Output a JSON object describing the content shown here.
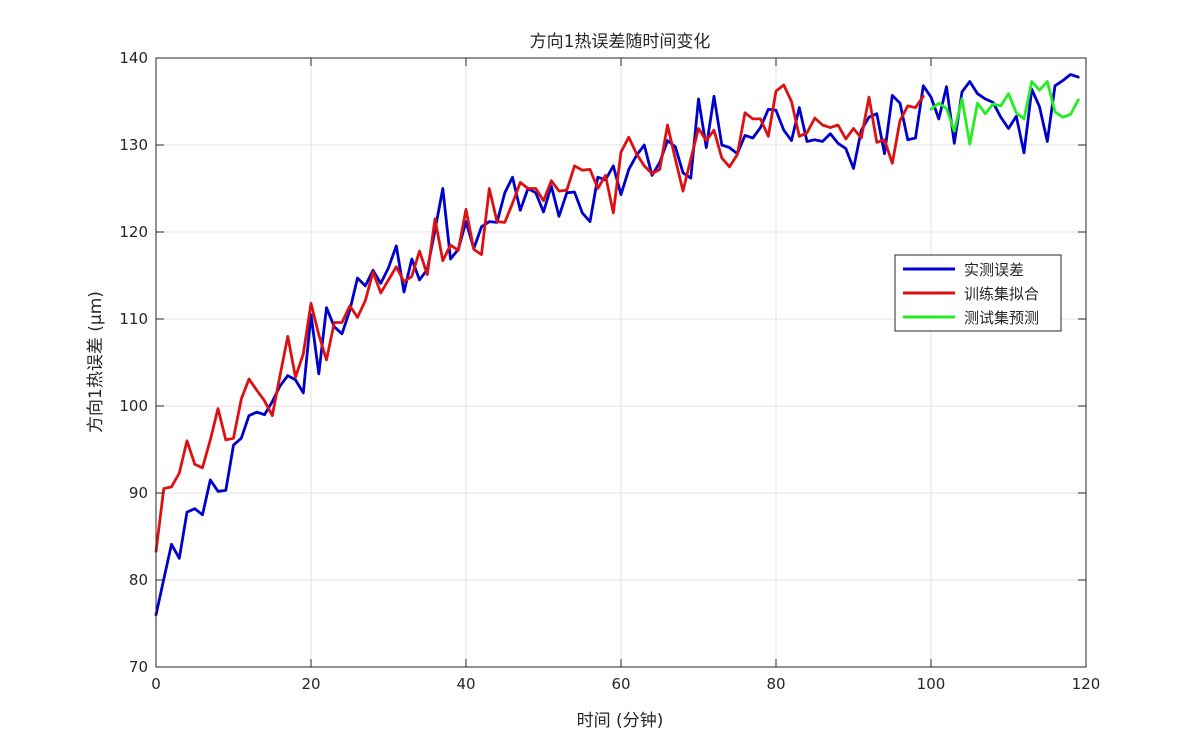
{
  "chart_data": {
    "type": "line",
    "title": "方向1热误差随时间变化",
    "xlabel": "时间 (分钟)",
    "ylabel": "方向1热误差 (μm)",
    "xlim": [
      0,
      120
    ],
    "ylim": [
      70,
      140
    ],
    "xticks": [
      0,
      20,
      40,
      60,
      80,
      100,
      120
    ],
    "yticks": [
      70,
      80,
      90,
      100,
      110,
      120,
      130,
      140
    ],
    "grid": true,
    "legend_position": "right",
    "series": [
      {
        "name": "实测误差",
        "color": "#0000cc",
        "x": [
          0,
          1,
          2,
          3,
          4,
          5,
          6,
          7,
          8,
          9,
          10,
          11,
          12,
          13,
          14,
          15,
          16,
          17,
          18,
          19,
          20,
          21,
          22,
          23,
          24,
          25,
          26,
          27,
          28,
          29,
          30,
          31,
          32,
          33,
          34,
          35,
          36,
          37,
          38,
          39,
          40,
          41,
          42,
          43,
          44,
          45,
          46,
          47,
          48,
          49,
          50,
          51,
          52,
          53,
          54,
          55,
          56,
          57,
          58,
          59,
          60,
          61,
          62,
          63,
          64,
          65,
          66,
          67,
          68,
          69,
          70,
          71,
          72,
          73,
          74,
          75,
          76,
          77,
          78,
          79,
          80,
          81,
          82,
          83,
          84,
          85,
          86,
          87,
          88,
          89,
          90,
          91,
          92,
          93,
          94,
          95,
          96,
          97,
          98,
          99,
          100,
          101,
          102,
          103,
          104,
          105,
          106,
          107,
          108,
          109,
          110,
          111,
          112,
          113,
          114,
          115,
          116,
          117,
          118,
          119
        ],
        "values": [
          76,
          80.1,
          84.1,
          82.5,
          87.8,
          88.2,
          87.5,
          91.5,
          90.2,
          90.3,
          95.5,
          96.3,
          98.9,
          99.3,
          99,
          100.5,
          102.3,
          103.5,
          103,
          101.5,
          110.5,
          103.7,
          111.3,
          109.1,
          108.3,
          111,
          114.7,
          113.8,
          115.6,
          114.1,
          115.9,
          118.4,
          113.1,
          116.9,
          114.5,
          115.7,
          120.2,
          125,
          116.9,
          118,
          121.2,
          118.1,
          120.6,
          121.2,
          121.1,
          124.5,
          126.3,
          122.5,
          125,
          124.5,
          122.3,
          125.3,
          121.8,
          124.5,
          124.6,
          122.2,
          121.2,
          126.3,
          126,
          127.6,
          124.3,
          127.2,
          128.8,
          130,
          126.5,
          128,
          130.5,
          129.8,
          126.8,
          126.2,
          135.3,
          129.7,
          135.6,
          130,
          129.7,
          129,
          131.1,
          130.8,
          132,
          134.1,
          134,
          131.7,
          130.5,
          134.3,
          130.4,
          130.6,
          130.4,
          131.3,
          130.2,
          129.6,
          127.3,
          131.7,
          133.2,
          133.6,
          129,
          135.7,
          134.8,
          130.6,
          130.8,
          136.8,
          135.5,
          133,
          136.7,
          130.2,
          136.1,
          137.3,
          135.9,
          135.3,
          134.9,
          133.2,
          131.9,
          133.3,
          129.1,
          136.4,
          134.4,
          130.4,
          136.8,
          137.4,
          138.1,
          137.8
        ]
      },
      {
        "name": "训练集拟合",
        "color": "#dd1111",
        "x": [
          0,
          1,
          2,
          3,
          4,
          5,
          6,
          7,
          8,
          9,
          10,
          11,
          12,
          13,
          14,
          15,
          16,
          17,
          18,
          19,
          20,
          21,
          22,
          23,
          24,
          25,
          26,
          27,
          28,
          29,
          30,
          31,
          32,
          33,
          34,
          35,
          36,
          37,
          38,
          39,
          40,
          41,
          42,
          43,
          44,
          45,
          46,
          47,
          48,
          49,
          50,
          51,
          52,
          53,
          54,
          55,
          56,
          57,
          58,
          59,
          60,
          61,
          62,
          63,
          64,
          65,
          66,
          67,
          68,
          69,
          70,
          71,
          72,
          73,
          74,
          75,
          76,
          77,
          78,
          79,
          80,
          81,
          82,
          83,
          84,
          85,
          86,
          87,
          88,
          89,
          90,
          91,
          92,
          93,
          94,
          95,
          96,
          97,
          98,
          99
        ],
        "values": [
          83.3,
          90.5,
          90.7,
          92.3,
          96,
          93.3,
          92.9,
          96.1,
          99.7,
          96.1,
          96.3,
          100.8,
          103.1,
          101.8,
          100.6,
          98.9,
          103.5,
          108,
          103.3,
          106,
          111.8,
          108.2,
          105.3,
          109.6,
          109.6,
          111.5,
          110.2,
          112.1,
          115.4,
          113,
          114.5,
          116,
          114.3,
          114.9,
          117.8,
          115.1,
          121.5,
          116.7,
          118.5,
          117.9,
          122.6,
          118,
          117.4,
          125,
          121.2,
          121.1,
          123.3,
          125.7,
          125,
          125,
          123.6,
          125.9,
          124.7,
          124.8,
          127.6,
          127.1,
          127.2,
          125,
          126.5,
          122.2,
          129.2,
          130.9,
          129,
          127.6,
          126.7,
          127.2,
          132.3,
          128.4,
          124.7,
          128.4,
          131.9,
          130.5,
          131.7,
          128.5,
          127.5,
          128.9,
          133.7,
          133,
          133,
          131,
          136.2,
          136.9,
          135,
          131,
          131.4,
          133.1,
          132.3,
          132,
          132.3,
          130.7,
          131.9,
          130.8,
          135.5,
          130.3,
          130.6,
          127.9,
          132.8,
          134.5,
          134.3,
          135.6
        ]
      },
      {
        "name": "测试集预测",
        "color": "#22ee22",
        "x": [
          100,
          101,
          102,
          103,
          104,
          105,
          106,
          107,
          108,
          109,
          110,
          111,
          112,
          113,
          114,
          115,
          116,
          117,
          118,
          119
        ],
        "values": [
          134.1,
          134.8,
          134.2,
          131.6,
          135.3,
          130.1,
          134.8,
          133.6,
          134.7,
          134.5,
          135.9,
          133.7,
          133,
          137.3,
          136.3,
          137.3,
          133.8,
          133.2,
          133.5,
          135.2
        ]
      }
    ]
  }
}
